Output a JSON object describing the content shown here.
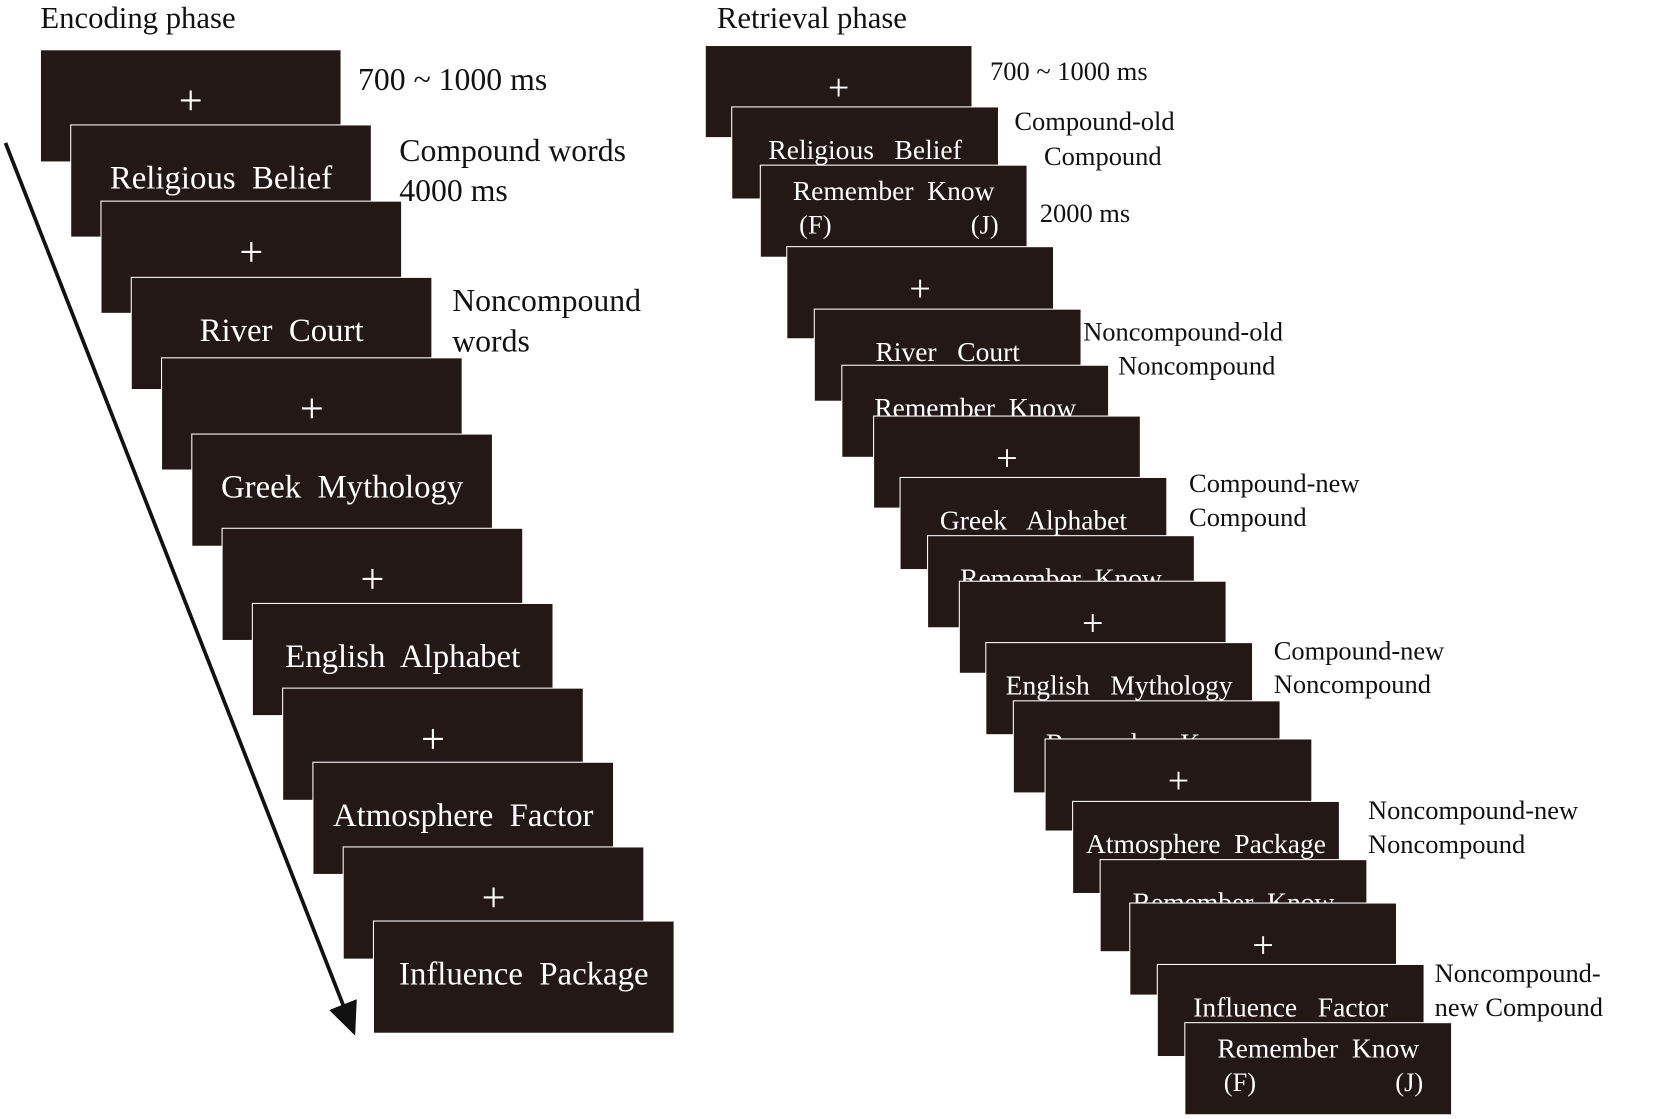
{
  "encoding": {
    "title": "Encoding phase",
    "screens": [
      {
        "text": "+"
      },
      {
        "text": "Religious  Belief"
      },
      {
        "text": "+"
      },
      {
        "text": "River  Court"
      },
      {
        "text": "+"
      },
      {
        "text": "Greek  Mythology"
      },
      {
        "text": "+"
      },
      {
        "text": "English  Alphabet"
      },
      {
        "text": "+"
      },
      {
        "text": "Atmosphere  Factor"
      },
      {
        "text": "+"
      },
      {
        "text": "Influence  Package"
      }
    ],
    "notes": [
      "700 ~ 1000 ms",
      "Compound words",
      "4000 ms",
      "Noncompound",
      "words"
    ]
  },
  "retrieval": {
    "title": "Retrieval phase",
    "screens": [
      {
        "text": "+"
      },
      {
        "text": "Religious   Belief"
      },
      {
        "text": "Remember  Know",
        "keys": [
          "(F)",
          "(J)"
        ]
      },
      {
        "text": "+"
      },
      {
        "text": "River   Court"
      },
      {
        "text": "Remember  Know"
      },
      {
        "text": "+"
      },
      {
        "text": "Greek   Alphabet"
      },
      {
        "text": "Remember  Know"
      },
      {
        "text": "+"
      },
      {
        "text": "English   Mythology"
      },
      {
        "text": "Remember  Know"
      },
      {
        "text": "+"
      },
      {
        "text": "Atmosphere  Package"
      },
      {
        "text": "Remember  Know"
      },
      {
        "text": "+"
      },
      {
        "text": "Influence   Factor"
      },
      {
        "text": "Remember  Know",
        "keys": [
          "(F)",
          "(J)"
        ]
      }
    ],
    "notes": [
      "700 ~ 1000 ms",
      "Compound-old",
      "Compound",
      "2000 ms",
      "Noncompound-old",
      "Noncompound",
      "Compound-new",
      "Compound",
      "Compound-new",
      "Noncompound",
      "Noncompound-new",
      "Noncompound",
      "Noncompound-",
      "new Compound"
    ]
  }
}
